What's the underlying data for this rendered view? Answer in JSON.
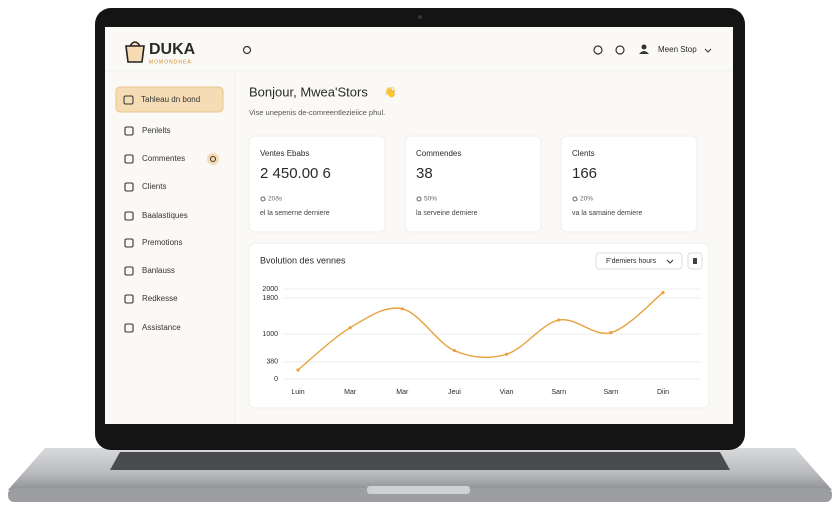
{
  "brand": {
    "name": "DUKA",
    "tagline": "MOMONDHEA"
  },
  "header": {
    "user": "Meen Stop"
  },
  "sidebar": {
    "items": [
      "Tahleau dn bond",
      "Penlelts",
      "Commentes",
      "Clients",
      "Baalastiques",
      "Premotions",
      "Banlauss",
      "Redkesse",
      "Assistance"
    ]
  },
  "dashboard": {
    "greeting": "Bonjour, Mwea'Stors",
    "subtitle": "Vise unepenis de-comreentlezieiice phul.",
    "stats": [
      {
        "label": "Ventes Ebabs",
        "value": "2 450.00 6",
        "change": "20ðs",
        "note": "el la semerne derniere"
      },
      {
        "label": "Commendes",
        "value": "38",
        "change": "50%",
        "note": "la serveine derniere"
      },
      {
        "label": "Clents",
        "value": "166",
        "change": "20%",
        "note": "va la samaine demiere"
      }
    ],
    "filter": "F'demiers hours"
  },
  "chart_data": {
    "type": "line",
    "title": "Bvolution des vennes",
    "categories": [
      "Luin",
      "Mar",
      "Mar",
      "Jeui",
      "Vian",
      "Sarn",
      "Sarn",
      "Diin"
    ],
    "series": [
      {
        "name": "Ventes",
        "color": "#e8a23c",
        "values": [
          200,
          1140,
          1560,
          630,
          550,
          1310,
          1030,
          1920
        ]
      }
    ],
    "ylim": [
      0,
      2000
    ],
    "yticks": [
      0,
      380,
      1000,
      1800,
      2000
    ],
    "grid": true
  }
}
